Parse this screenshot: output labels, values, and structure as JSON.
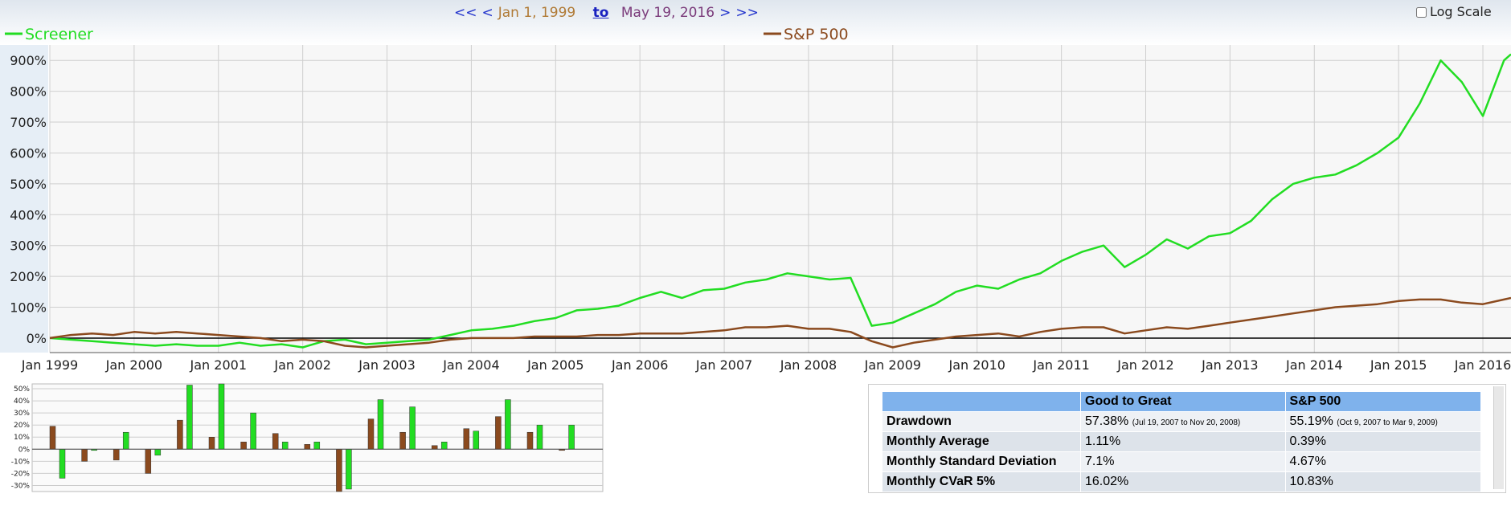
{
  "header": {
    "first": "<<",
    "prev": "<",
    "start_date": "Jan 1, 1999",
    "to": "to",
    "end_date": "May 19, 2016",
    "next": ">",
    "last": ">>",
    "log_scale": "Log Scale"
  },
  "chart_data": [
    {
      "type": "line",
      "x": [
        "1999-01",
        "1999-04",
        "1999-07",
        "1999-10",
        "2000-01",
        "2000-04",
        "2000-07",
        "2000-10",
        "2001-01",
        "2001-04",
        "2001-07",
        "2001-10",
        "2002-01",
        "2002-04",
        "2002-07",
        "2002-10",
        "2003-01",
        "2003-04",
        "2003-07",
        "2003-10",
        "2004-01",
        "2004-04",
        "2004-07",
        "2004-10",
        "2005-01",
        "2005-04",
        "2005-07",
        "2005-10",
        "2006-01",
        "2006-04",
        "2006-07",
        "2006-10",
        "2007-01",
        "2007-04",
        "2007-07",
        "2007-10",
        "2008-01",
        "2008-04",
        "2008-07",
        "2008-10",
        "2009-01",
        "2009-04",
        "2009-07",
        "2009-10",
        "2010-01",
        "2010-04",
        "2010-07",
        "2010-10",
        "2011-01",
        "2011-04",
        "2011-07",
        "2011-10",
        "2012-01",
        "2012-04",
        "2012-07",
        "2012-10",
        "2013-01",
        "2013-04",
        "2013-07",
        "2013-10",
        "2014-01",
        "2014-04",
        "2014-07",
        "2014-10",
        "2015-01",
        "2015-04",
        "2015-07",
        "2015-10",
        "2016-01",
        "2016-04",
        "2016-05"
      ],
      "series": [
        {
          "name": "Screener",
          "color": "#22dd22",
          "values": [
            0,
            -5,
            -10,
            -15,
            -20,
            -25,
            -20,
            -25,
            -25,
            -15,
            -25,
            -20,
            -30,
            -10,
            -5,
            -20,
            -15,
            -10,
            -5,
            10,
            25,
            30,
            40,
            55,
            65,
            90,
            95,
            105,
            130,
            150,
            130,
            155,
            160,
            180,
            190,
            210,
            200,
            190,
            195,
            40,
            50,
            80,
            110,
            150,
            170,
            160,
            190,
            210,
            250,
            280,
            300,
            230,
            270,
            320,
            290,
            330,
            340,
            380,
            450,
            500,
            520,
            530,
            560,
            600,
            650,
            760,
            900,
            830,
            720,
            900,
            920
          ]
        },
        {
          "name": "S&P 500",
          "color": "#8b4a1e",
          "values": [
            0,
            10,
            15,
            10,
            20,
            15,
            20,
            15,
            10,
            5,
            0,
            -10,
            -5,
            -10,
            -25,
            -30,
            -25,
            -20,
            -15,
            -5,
            0,
            0,
            0,
            5,
            5,
            5,
            10,
            10,
            15,
            15,
            15,
            20,
            25,
            35,
            35,
            40,
            30,
            30,
            20,
            -10,
            -30,
            -15,
            -5,
            5,
            10,
            15,
            5,
            20,
            30,
            35,
            35,
            15,
            25,
            35,
            30,
            40,
            50,
            60,
            70,
            80,
            90,
            100,
            105,
            110,
            120,
            125,
            125,
            115,
            110,
            125,
            130
          ]
        }
      ],
      "xlim": [
        "1999-01",
        "2016-05"
      ],
      "xticks": [
        {
          "value": "1999-01",
          "label": "Jan 1999"
        },
        {
          "value": "2000-01",
          "label": "Jan 2000"
        },
        {
          "value": "2001-01",
          "label": "Jan 2001"
        },
        {
          "value": "2002-01",
          "label": "Jan 2002"
        },
        {
          "value": "2003-01",
          "label": "Jan 2003"
        },
        {
          "value": "2004-01",
          "label": "Jan 2004"
        },
        {
          "value": "2005-01",
          "label": "Jan 2005"
        },
        {
          "value": "2006-01",
          "label": "Jan 2006"
        },
        {
          "value": "2007-01",
          "label": "Jan 2007"
        },
        {
          "value": "2008-01",
          "label": "Jan 2008"
        },
        {
          "value": "2009-01",
          "label": "Jan 2009"
        },
        {
          "value": "2010-01",
          "label": "Jan 2010"
        },
        {
          "value": "2011-01",
          "label": "Jan 2011"
        },
        {
          "value": "2012-01",
          "label": "Jan 2012"
        },
        {
          "value": "2013-01",
          "label": "Jan 2013"
        },
        {
          "value": "2014-01",
          "label": "Jan 2014"
        },
        {
          "value": "2015-01",
          "label": "Jan 2015"
        },
        {
          "value": "2016-01",
          "label": "Jan 2016"
        }
      ],
      "ylim": [
        -47,
        950
      ],
      "yticks": [
        {
          "value": 0,
          "label": "0%"
        },
        {
          "value": 100,
          "label": "100%"
        },
        {
          "value": 200,
          "label": "200%"
        },
        {
          "value": 300,
          "label": "300%"
        },
        {
          "value": 400,
          "label": "400%"
        },
        {
          "value": 500,
          "label": "500%"
        },
        {
          "value": 600,
          "label": "600%"
        },
        {
          "value": 700,
          "label": "700%"
        },
        {
          "value": 800,
          "label": "800%"
        },
        {
          "value": 900,
          "label": "900%"
        }
      ],
      "grid": true
    },
    {
      "type": "bar",
      "series": [
        {
          "color": "#8b4a1e",
          "values": [
            19,
            -10,
            -9,
            -20,
            24,
            10,
            6,
            13,
            4,
            -35,
            25,
            14,
            3,
            17,
            27,
            14,
            -1
          ]
        },
        {
          "color": "#22dd22",
          "values": [
            -24,
            -1,
            14,
            -5,
            53,
            55,
            30,
            6,
            6,
            -33,
            41,
            35,
            6,
            15,
            41,
            20,
            20
          ]
        }
      ],
      "ylim": [
        -35,
        54
      ],
      "yticks": [
        {
          "value": 50,
          "label": "50%"
        },
        {
          "value": 40,
          "label": "40%"
        },
        {
          "value": 30,
          "label": "30%"
        },
        {
          "value": 20,
          "label": "20%"
        },
        {
          "value": 10,
          "label": "10%"
        },
        {
          "value": 0,
          "label": "0%"
        },
        {
          "value": -10,
          "label": "-10%"
        },
        {
          "value": -20,
          "label": "-20%"
        },
        {
          "value": -30,
          "label": "-30%"
        }
      ],
      "grid": true
    }
  ],
  "table": {
    "header": [
      "Good to Great",
      "S&P 500"
    ],
    "rows": [
      {
        "label": "Drawdown",
        "values": [
          "57.38%",
          "55.19%"
        ],
        "notes": [
          "(Jul 19, 2007 to Nov 20, 2008)",
          "(Oct 9, 2007 to Mar 9, 2009)"
        ]
      },
      {
        "label": "Monthly Average",
        "values": [
          "1.11%",
          "0.39%"
        ]
      },
      {
        "label": "Monthly Standard Deviation",
        "values": [
          "7.1%",
          "4.67%"
        ]
      },
      {
        "label": "Monthly CVaR 5%",
        "values": [
          "16.02%",
          "10.83%"
        ]
      }
    ]
  }
}
